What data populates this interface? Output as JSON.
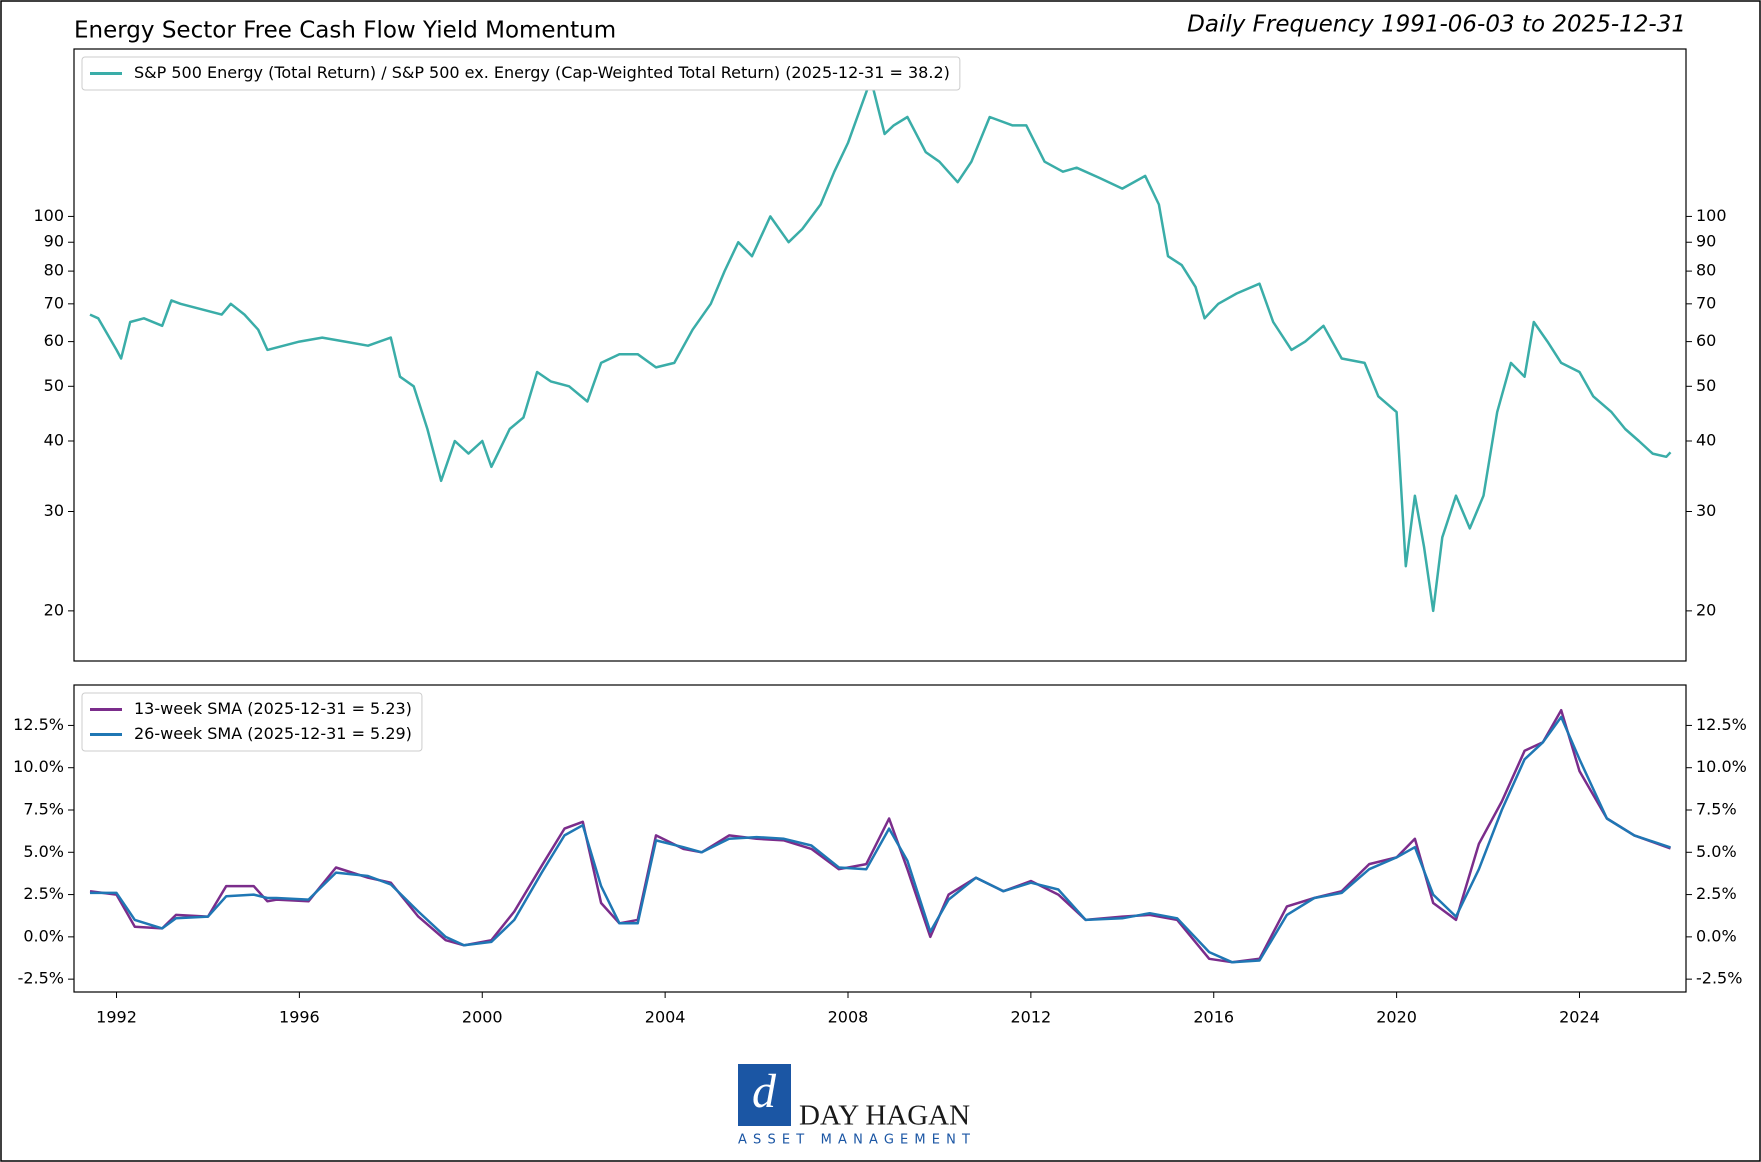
{
  "chart_data": [
    {
      "type": "line",
      "title": "Energy Sector Free Cash Flow Yield Momentum",
      "subtitle": "Daily Frequency 1991-06-03 to 2025-12-31",
      "log_scale": true,
      "xlim": [
        1991.07,
        2026.33
      ],
      "ylim": [
        16.3,
        198
      ],
      "yticks": [
        20,
        30,
        40,
        50,
        60,
        70,
        80,
        90,
        100
      ],
      "legend": "upper left",
      "x": [
        1991.42,
        1991.6,
        1992.0,
        1992.1,
        1992.3,
        1992.6,
        1993.0,
        1993.2,
        1993.4,
        1994.3,
        1994.5,
        1994.8,
        1995.1,
        1995.3,
        1996.0,
        1996.5,
        1997.0,
        1997.5,
        1998.0,
        1998.2,
        1998.5,
        1998.8,
        1999.1,
        1999.4,
        1999.7,
        2000.0,
        2000.2,
        2000.6,
        2000.9,
        2001.2,
        2001.5,
        2001.9,
        2002.3,
        2002.6,
        2003.0,
        2003.4,
        2003.8,
        2004.2,
        2004.6,
        2005.0,
        2005.3,
        2005.6,
        2005.9,
        2006.3,
        2006.7,
        2007.0,
        2007.4,
        2007.7,
        2008.0,
        2008.5,
        2008.8,
        2009.0,
        2009.3,
        2009.7,
        2010.0,
        2010.4,
        2010.7,
        2011.1,
        2011.6,
        2011.9,
        2012.3,
        2012.7,
        2013.0,
        2013.5,
        2014.0,
        2014.5,
        2014.8,
        2015.0,
        2015.3,
        2015.6,
        2015.8,
        2016.1,
        2016.5,
        2017.0,
        2017.3,
        2017.7,
        2018.0,
        2018.4,
        2018.8,
        2019.3,
        2019.6,
        2020.0,
        2020.2,
        2020.4,
        2020.6,
        2020.8,
        2021.0,
        2021.3,
        2021.6,
        2021.9,
        2022.2,
        2022.5,
        2022.8,
        2023.0,
        2023.3,
        2023.6,
        2024.0,
        2024.3,
        2024.7,
        2025.0,
        2025.3,
        2025.6,
        2025.9,
        2025.99
      ],
      "series": [
        {
          "name": "S&P 500 Energy (Total Return) / S&P 500 ex. Energy (Cap-Weighted Total Return) (2025-12-31 = 38.2)",
          "color": "#3aada8",
          "values": [
            67,
            66,
            58,
            56,
            65,
            66,
            64,
            71,
            70,
            67,
            70,
            67,
            63,
            58,
            60,
            61,
            60,
            59,
            61,
            52,
            50,
            42,
            34,
            40,
            38,
            40,
            36,
            42,
            44,
            53,
            51,
            50,
            47,
            55,
            57,
            57,
            54,
            55,
            63,
            70,
            80,
            90,
            85,
            100,
            90,
            95,
            105,
            120,
            135,
            175,
            140,
            145,
            150,
            130,
            125,
            115,
            125,
            150,
            145,
            145,
            125,
            120,
            122,
            117,
            112,
            118,
            105,
            85,
            82,
            75,
            66,
            70,
            73,
            76,
            65,
            58,
            60,
            64,
            56,
            55,
            48,
            45,
            24,
            32,
            26,
            20,
            27,
            32,
            28,
            32,
            45,
            55,
            52,
            65,
            60,
            55,
            53,
            48,
            45,
            42,
            40,
            38,
            37.5,
            38.2
          ]
        }
      ]
    },
    {
      "type": "line",
      "xlim": [
        1991.07,
        2026.33
      ],
      "xticks": [
        1992,
        1996,
        2000,
        2004,
        2008,
        2012,
        2016,
        2020,
        2024
      ],
      "ylim": [
        -3.26,
        14.89
      ],
      "yticks": [
        {
          "value": -2.5,
          "label": "-2.5%"
        },
        {
          "value": 0,
          "label": "0.0%"
        },
        {
          "value": 2.5,
          "label": "2.5%"
        },
        {
          "value": 5,
          "label": "5.0%"
        },
        {
          "value": 7.5,
          "label": "7.5%"
        },
        {
          "value": 10,
          "label": "10.0%"
        },
        {
          "value": 12.5,
          "label": "12.5%"
        }
      ],
      "legend": "upper left",
      "x": [
        1991.42,
        1992.0,
        1992.4,
        1993.0,
        1993.3,
        1994.0,
        1994.4,
        1995.0,
        1995.3,
        1995.5,
        1996.2,
        1996.8,
        1997.5,
        1998.0,
        1998.6,
        1999.2,
        1999.6,
        2000.2,
        2000.7,
        2001.3,
        2001.8,
        2002.2,
        2002.6,
        2003.0,
        2003.4,
        2003.8,
        2004.4,
        2004.8,
        2005.4,
        2006.0,
        2006.6,
        2007.2,
        2007.8,
        2008.4,
        2008.9,
        2009.3,
        2009.8,
        2010.2,
        2010.8,
        2011.4,
        2012.0,
        2012.6,
        2013.2,
        2014.0,
        2014.6,
        2015.2,
        2015.9,
        2016.4,
        2017.0,
        2017.6,
        2018.2,
        2018.8,
        2019.4,
        2020.0,
        2020.4,
        2020.8,
        2021.3,
        2021.8,
        2022.3,
        2022.8,
        2023.2,
        2023.6,
        2024.0,
        2024.6,
        2025.2,
        2025.99
      ],
      "series": [
        {
          "name": "13-week SMA (2025-12-31 = 5.23)",
          "color": "#7b2d8b",
          "values": [
            2.7,
            2.5,
            0.6,
            0.5,
            1.3,
            1.2,
            3.0,
            3.0,
            2.1,
            2.2,
            2.1,
            4.1,
            3.5,
            3.2,
            1.2,
            -0.2,
            -0.5,
            -0.2,
            1.5,
            4.2,
            6.4,
            6.8,
            2.0,
            0.8,
            1.0,
            6.0,
            5.2,
            5.0,
            6.0,
            5.8,
            5.7,
            5.2,
            4.0,
            4.3,
            7.0,
            4.0,
            0.0,
            2.5,
            3.5,
            2.7,
            3.3,
            2.5,
            1.0,
            1.2,
            1.3,
            1.0,
            -1.3,
            -1.5,
            -1.3,
            1.8,
            2.3,
            2.7,
            4.3,
            4.7,
            5.8,
            2.0,
            1.0,
            5.5,
            8.0,
            11.0,
            11.5,
            13.4,
            9.8,
            7.0,
            6.0,
            5.23
          ]
        },
        {
          "name": "26-week SMA (2025-12-31 = 5.29)",
          "color": "#1f77b4",
          "values": [
            2.6,
            2.6,
            1.0,
            0.5,
            1.1,
            1.2,
            2.4,
            2.5,
            2.3,
            2.3,
            2.2,
            3.8,
            3.6,
            3.1,
            1.5,
            0.0,
            -0.5,
            -0.3,
            1.0,
            3.8,
            6.0,
            6.6,
            3.0,
            0.8,
            0.8,
            5.7,
            5.3,
            5.0,
            5.8,
            5.9,
            5.8,
            5.4,
            4.1,
            4.0,
            6.4,
            4.5,
            0.3,
            2.2,
            3.5,
            2.7,
            3.2,
            2.8,
            1.0,
            1.1,
            1.4,
            1.1,
            -0.9,
            -1.5,
            -1.4,
            1.3,
            2.3,
            2.6,
            4.0,
            4.7,
            5.3,
            2.5,
            1.2,
            4.0,
            7.5,
            10.5,
            11.5,
            13.0,
            10.5,
            7.0,
            6.0,
            5.29
          ]
        }
      ]
    }
  ],
  "logo": {
    "name": "DAY HAGAN",
    "tagline": "ASSET MANAGEMENT"
  }
}
